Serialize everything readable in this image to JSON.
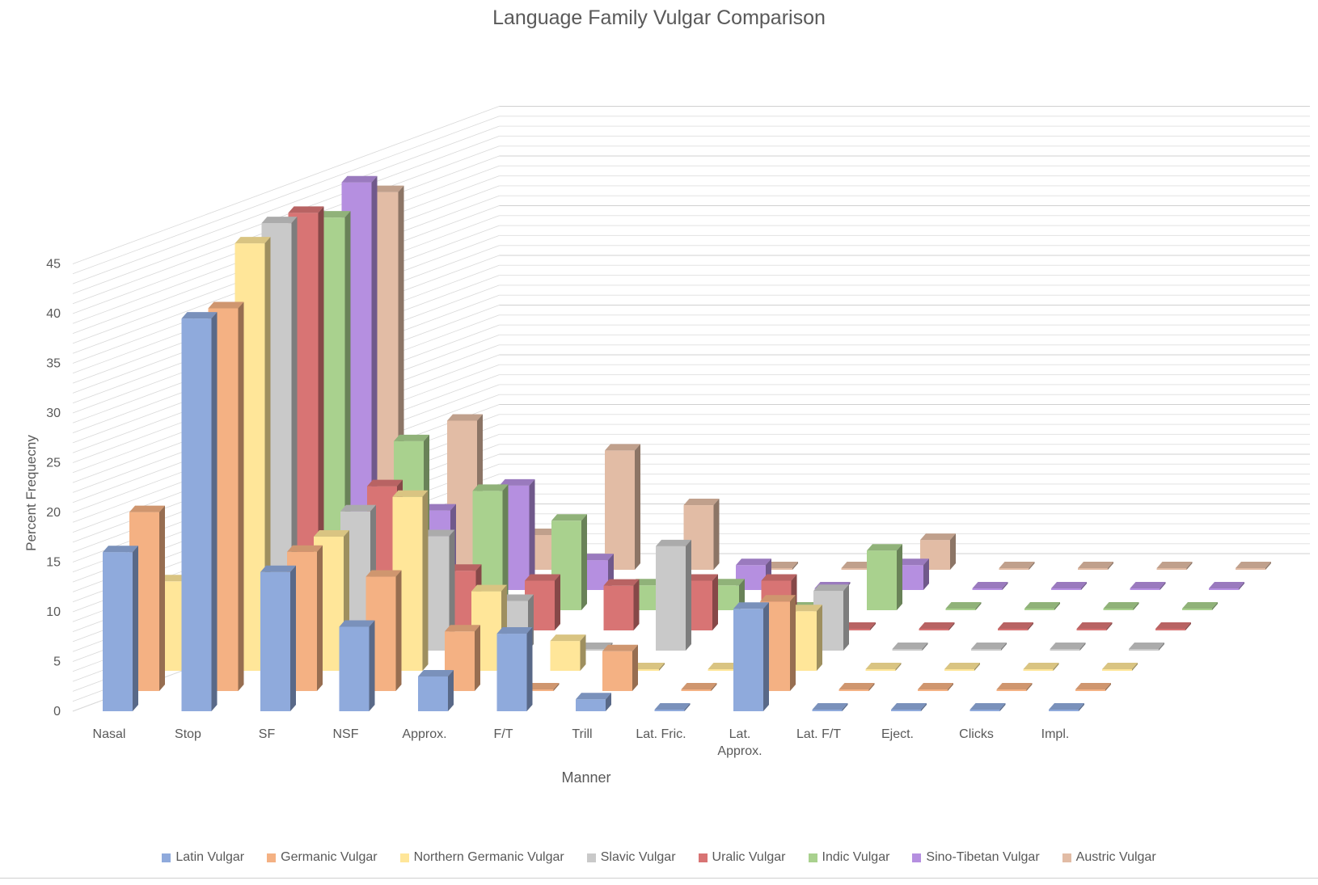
{
  "chart_data": {
    "type": "bar",
    "title": "Language Family Vulgar Comparison",
    "xlabel": "Manner",
    "ylabel": "Percent Frequecny",
    "ylim": [
      0,
      45
    ],
    "yticks": [
      0,
      5,
      10,
      15,
      20,
      25,
      30,
      35,
      40,
      45
    ],
    "grid": true,
    "legend_position": "bottom",
    "categories": [
      "Nasal",
      "Stop",
      "SF",
      "NSF",
      "Approx.",
      "F/T",
      "Trill",
      "Lat. Fric.",
      "Lat. Approx.",
      "Lat. F/T",
      "Eject.",
      "Clicks",
      "Impl."
    ],
    "series": [
      {
        "name": "Latin Vulgar",
        "color": "#8FAADC",
        "values": [
          16,
          39.5,
          14,
          8.5,
          3.5,
          7.8,
          1.2,
          0,
          10.3,
          0,
          0,
          0,
          0
        ]
      },
      {
        "name": "Germanic Vulgar",
        "color": "#F4B183",
        "values": [
          18,
          38.5,
          14,
          11.5,
          6,
          0,
          4,
          0,
          9,
          0,
          0,
          0,
          0
        ]
      },
      {
        "name": "Northern Germanic Vulgar",
        "color": "#FFE699",
        "values": [
          9,
          43,
          13.5,
          17.5,
          8,
          3,
          0,
          0,
          6,
          0,
          0,
          0,
          0
        ]
      },
      {
        "name": "Slavic Vulgar",
        "color": "#C9C9C9",
        "values": [
          5,
          43,
          14,
          11.5,
          5,
          0,
          10.5,
          0,
          6,
          0,
          0,
          0,
          0
        ]
      },
      {
        "name": "Uralic Vulgar",
        "color": "#D87474",
        "values": [
          5,
          42,
          14.5,
          6,
          5,
          4.5,
          5,
          5,
          0,
          0,
          0,
          0,
          0
        ]
      },
      {
        "name": "Indic Vulgar",
        "color": "#A9D18E",
        "values": [
          5,
          39.5,
          17,
          12,
          9,
          2.5,
          2.5,
          0,
          6,
          0,
          0,
          0,
          0
        ]
      },
      {
        "name": "Sino-Tibetan Vulgar",
        "color": "#B58FE0",
        "values": [
          8,
          41,
          8,
          10.5,
          3,
          0,
          2.5,
          0,
          2.5,
          0,
          0,
          0,
          0
        ]
      },
      {
        "name": "Austric Vulgar",
        "color": "#E2BCA5",
        "values": [
          5,
          38,
          15,
          3.5,
          12,
          6.5,
          0,
          0,
          3,
          0,
          0,
          0,
          0
        ]
      }
    ]
  }
}
